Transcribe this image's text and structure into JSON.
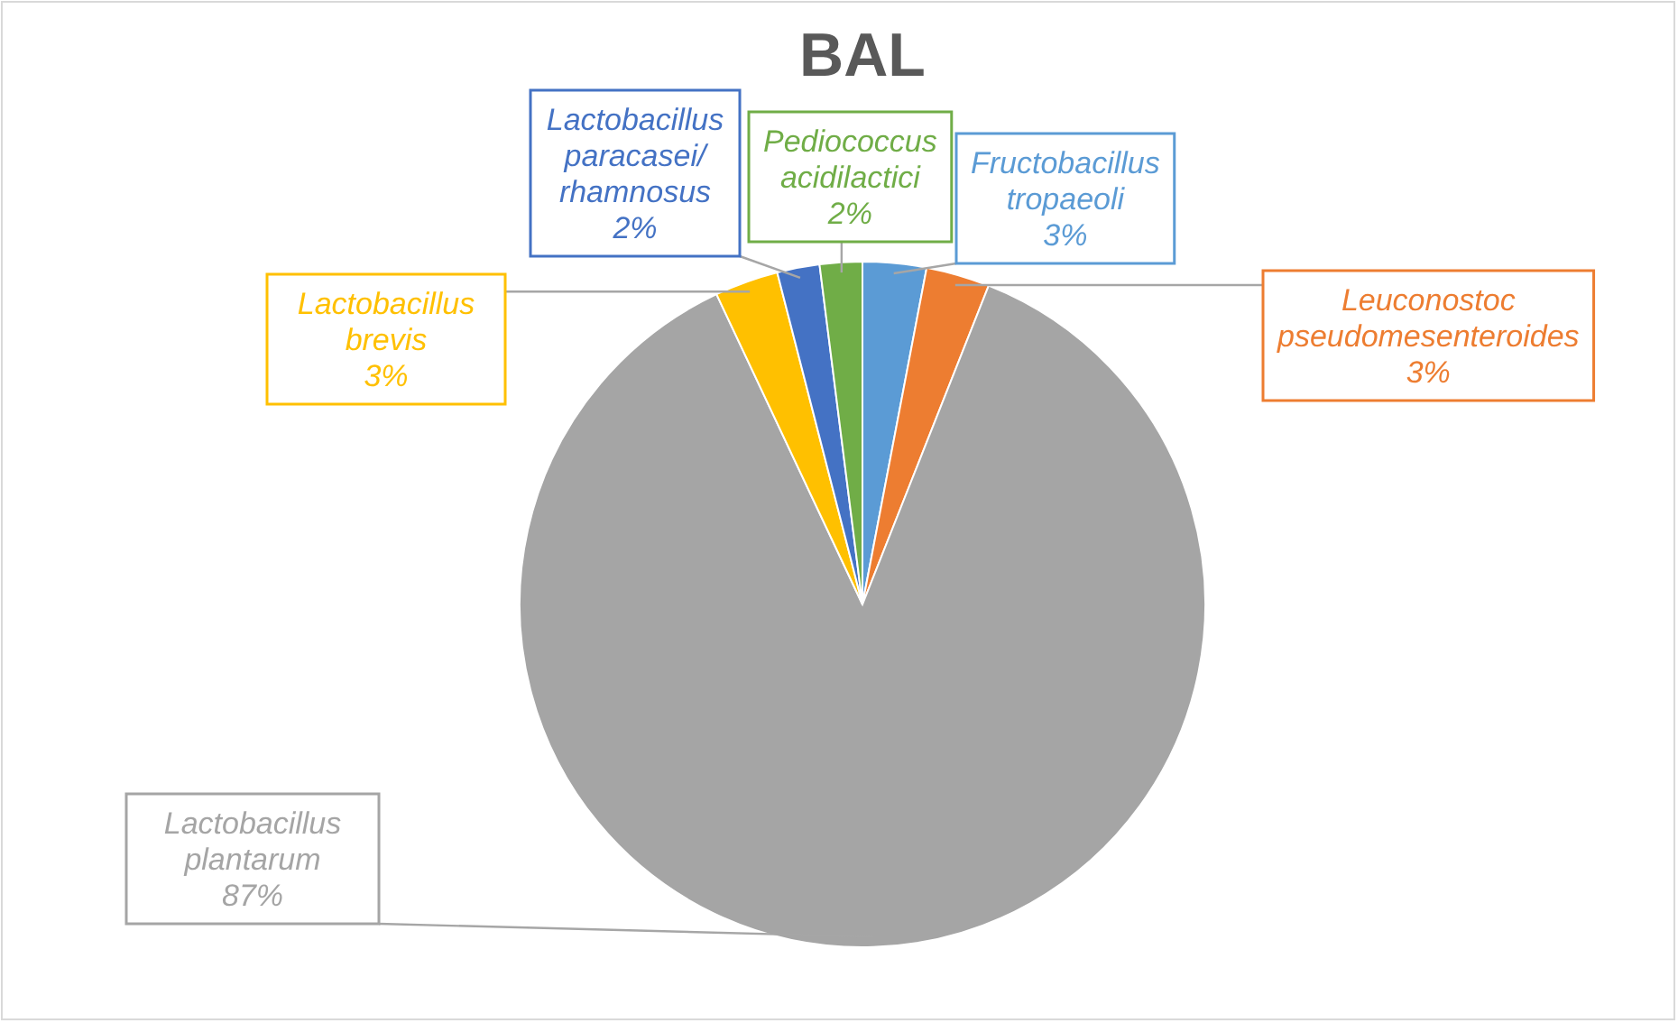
{
  "chart_data": {
    "type": "pie",
    "title": "BAL",
    "categories": [
      "Fructobacillus tropaeoli",
      "Leuconostoc pseudomesenteroides",
      "Lactobacillus plantarum",
      "Lactobacillus brevis",
      "Lactobacillus paracasei/ rhamnosus",
      "Pediococcus acidilactici"
    ],
    "values": [
      3,
      3,
      87,
      3,
      2,
      2
    ],
    "colors": [
      "#5b9bd5",
      "#ed7d31",
      "#a5a5a5",
      "#ffc000",
      "#4472c4",
      "#70ad47"
    ],
    "value_labels": [
      "3%",
      "3%",
      "87%",
      "3%",
      "2%",
      "2%"
    ]
  }
}
